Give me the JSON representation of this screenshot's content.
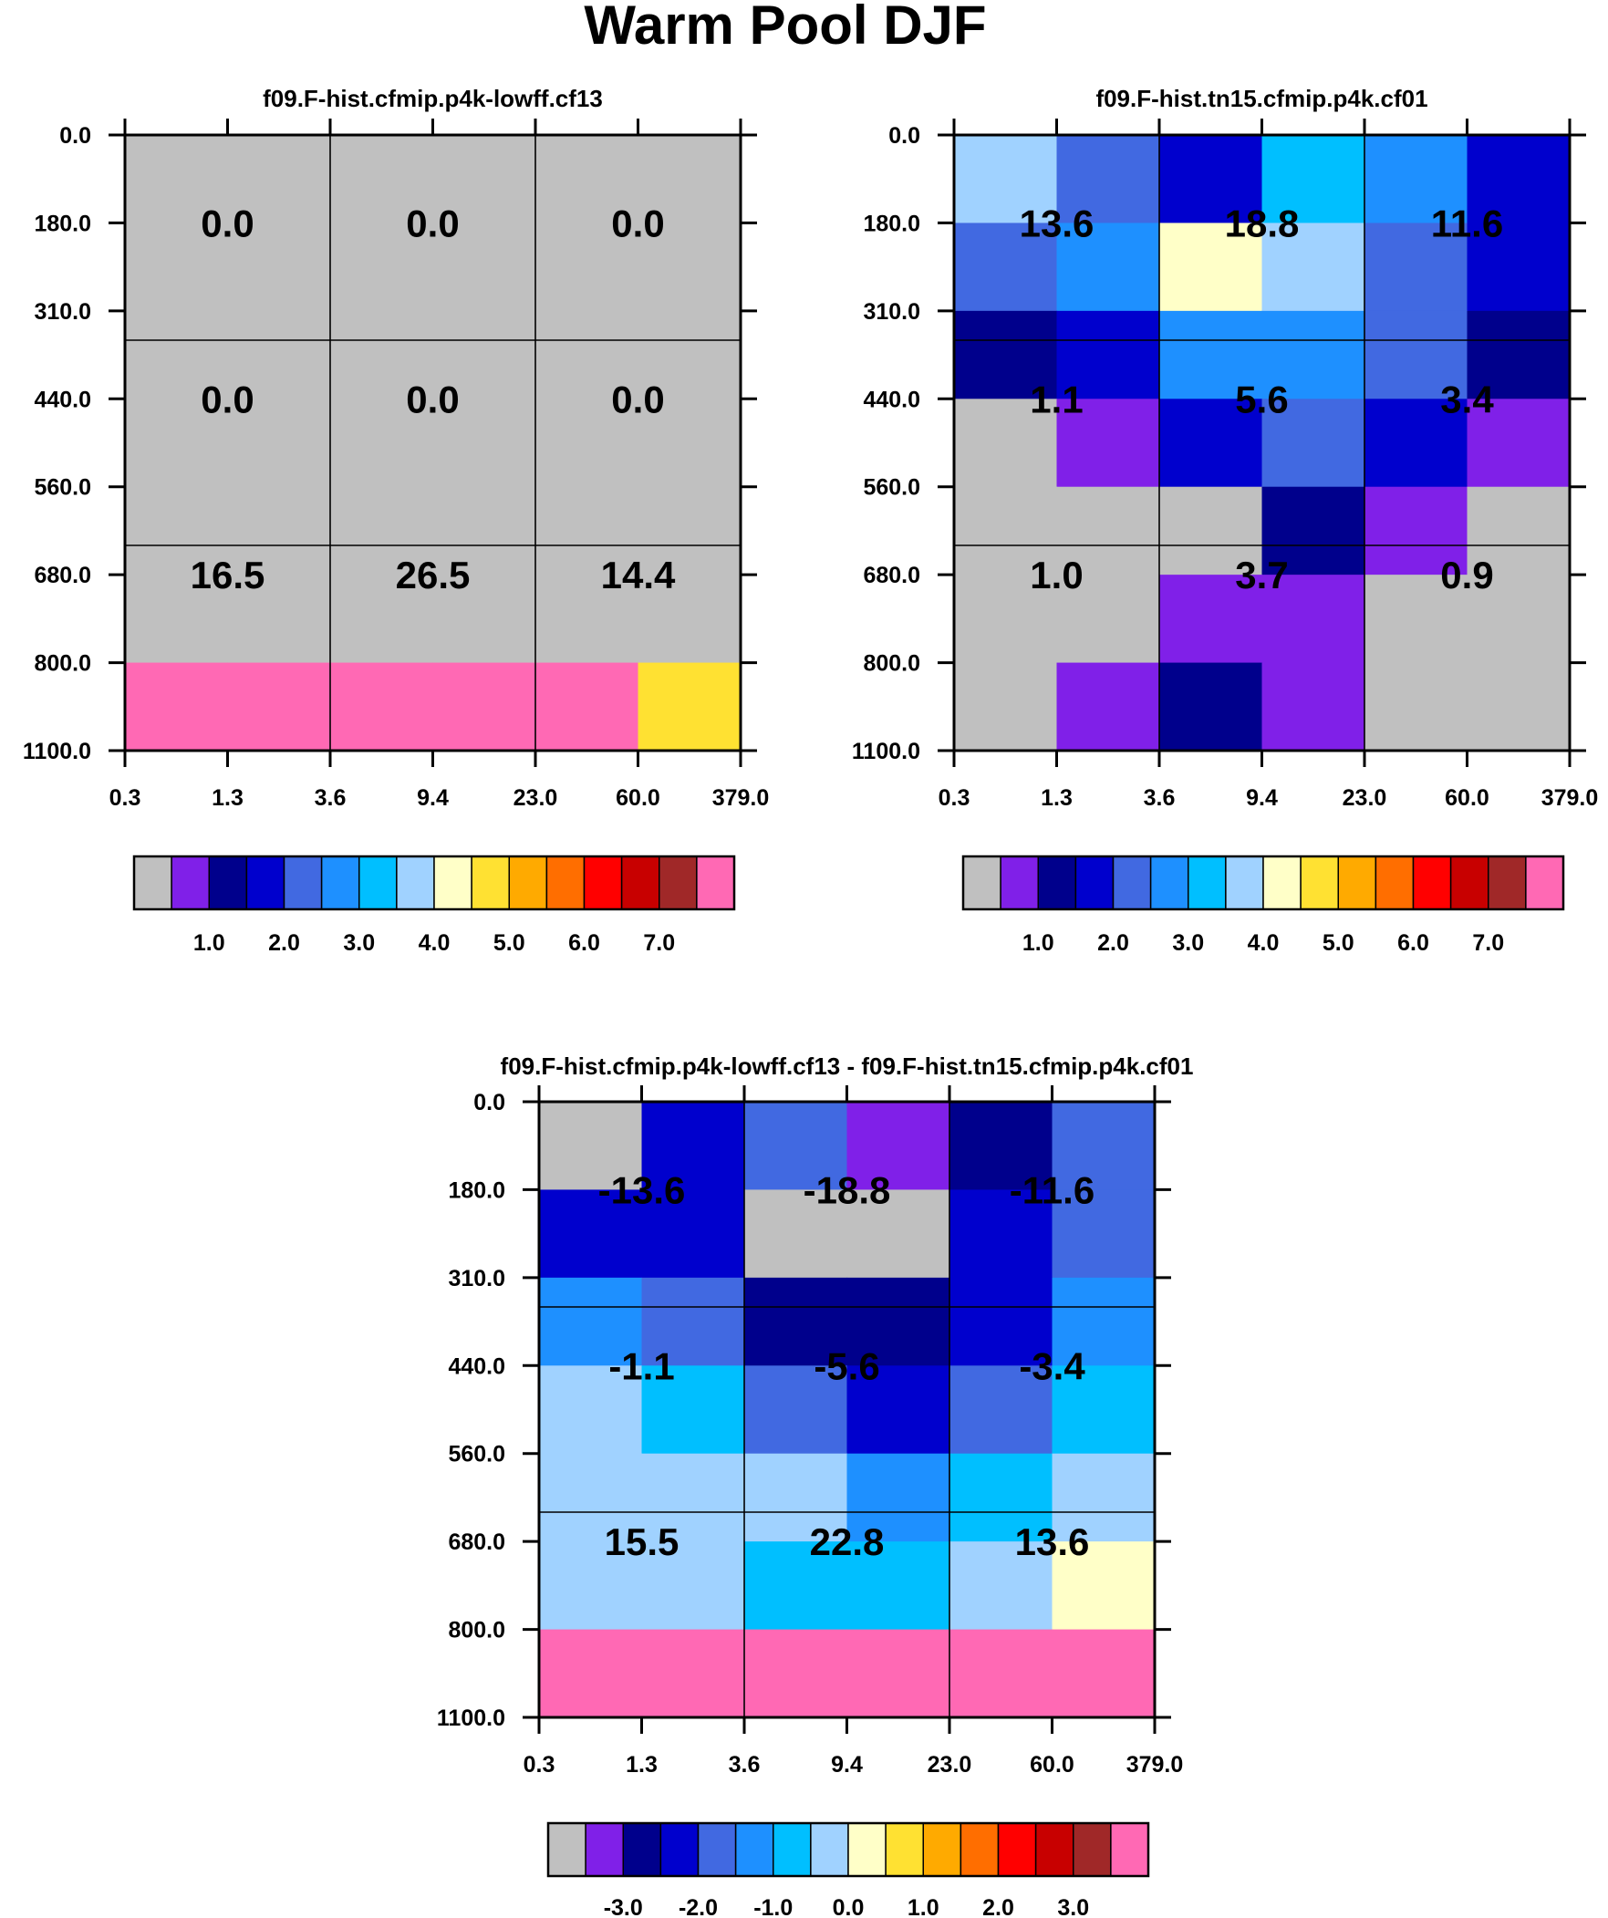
{
  "title": "Warm Pool DJF",
  "palette": [
    "#c0c0c0",
    "#8020e8",
    "#00008c",
    "#0000cd",
    "#4169e1",
    "#1e90ff",
    "#00bfff",
    "#a0d2ff",
    "#ffffc8",
    "#ffe132",
    "#ffaa00",
    "#ff6e00",
    "#ff0000",
    "#c80000",
    "#a02828",
    "#ff69b4"
  ],
  "chart_data": [
    {
      "type": "heatmap",
      "title": "f09.F-hist.cfmip.p4k-lowff.cf13",
      "x_tick_labels": [
        "0.3",
        "1.3",
        "3.6",
        "9.4",
        "23.0",
        "60.0",
        "379.0"
      ],
      "y_tick_labels": [
        "0.0",
        "180.0",
        "310.0",
        "440.0",
        "560.0",
        "680.0",
        "800.0",
        "1100.0"
      ],
      "color_index_grid": [
        [
          0,
          0,
          0,
          0,
          0,
          0
        ],
        [
          0,
          0,
          0,
          0,
          0,
          0
        ],
        [
          0,
          0,
          0,
          0,
          0,
          0
        ],
        [
          0,
          0,
          0,
          0,
          0,
          0
        ],
        [
          0,
          0,
          0,
          0,
          0,
          0
        ],
        [
          0,
          0,
          0,
          0,
          0,
          0
        ],
        [
          15,
          15,
          15,
          15,
          15,
          9
        ]
      ],
      "block_values": [
        [
          "0.0",
          "0.0",
          "0.0"
        ],
        [
          "0.0",
          "0.0",
          "0.0"
        ],
        [
          "16.5",
          "26.5",
          "14.4"
        ]
      ],
      "colorbar_labels": [
        "1.0",
        "2.0",
        "3.0",
        "4.0",
        "5.0",
        "6.0",
        "7.0"
      ]
    },
    {
      "type": "heatmap",
      "title": "f09.F-hist.tn15.cfmip.p4k.cf01",
      "x_tick_labels": [
        "0.3",
        "1.3",
        "3.6",
        "9.4",
        "23.0",
        "60.0",
        "379.0"
      ],
      "y_tick_labels": [
        "0.0",
        "180.0",
        "310.0",
        "440.0",
        "560.0",
        "680.0",
        "800.0",
        "1100.0"
      ],
      "color_index_grid": [
        [
          7,
          4,
          3,
          6,
          5,
          3
        ],
        [
          4,
          5,
          8,
          7,
          4,
          3
        ],
        [
          2,
          3,
          5,
          5,
          4,
          2
        ],
        [
          0,
          1,
          3,
          4,
          3,
          1
        ],
        [
          0,
          0,
          0,
          2,
          1,
          0
        ],
        [
          0,
          0,
          1,
          1,
          0,
          0
        ],
        [
          0,
          1,
          2,
          1,
          0,
          0
        ]
      ],
      "block_values": [
        [
          "13.6",
          "18.8",
          "11.6"
        ],
        [
          "1.1",
          "5.6",
          "3.4"
        ],
        [
          "1.0",
          "3.7",
          "0.9"
        ]
      ],
      "colorbar_labels": [
        "1.0",
        "2.0",
        "3.0",
        "4.0",
        "5.0",
        "6.0",
        "7.0"
      ]
    },
    {
      "type": "heatmap",
      "title": "f09.F-hist.cfmip.p4k-lowff.cf13 - f09.F-hist.tn15.cfmip.p4k.cf01",
      "x_tick_labels": [
        "0.3",
        "1.3",
        "3.6",
        "9.4",
        "23.0",
        "60.0",
        "379.0"
      ],
      "y_tick_labels": [
        "0.0",
        "180.0",
        "310.0",
        "440.0",
        "560.0",
        "680.0",
        "800.0",
        "1100.0"
      ],
      "color_index_grid": [
        [
          0,
          3,
          4,
          1,
          2,
          4
        ],
        [
          3,
          3,
          0,
          0,
          3,
          4
        ],
        [
          5,
          4,
          2,
          2,
          3,
          5
        ],
        [
          7,
          6,
          4,
          3,
          4,
          6
        ],
        [
          7,
          7,
          7,
          5,
          6,
          7
        ],
        [
          7,
          7,
          6,
          6,
          7,
          8
        ],
        [
          15,
          15,
          15,
          15,
          15,
          15
        ]
      ],
      "block_values": [
        [
          "-13.6",
          "-18.8",
          "-11.6"
        ],
        [
          "-1.1",
          "-5.6",
          "-3.4"
        ],
        [
          "15.5",
          "22.8",
          "13.6"
        ]
      ],
      "colorbar_labels": [
        "-3.0",
        "-2.0",
        "-1.0",
        "0.0",
        "1.0",
        "2.0",
        "3.0"
      ]
    }
  ]
}
